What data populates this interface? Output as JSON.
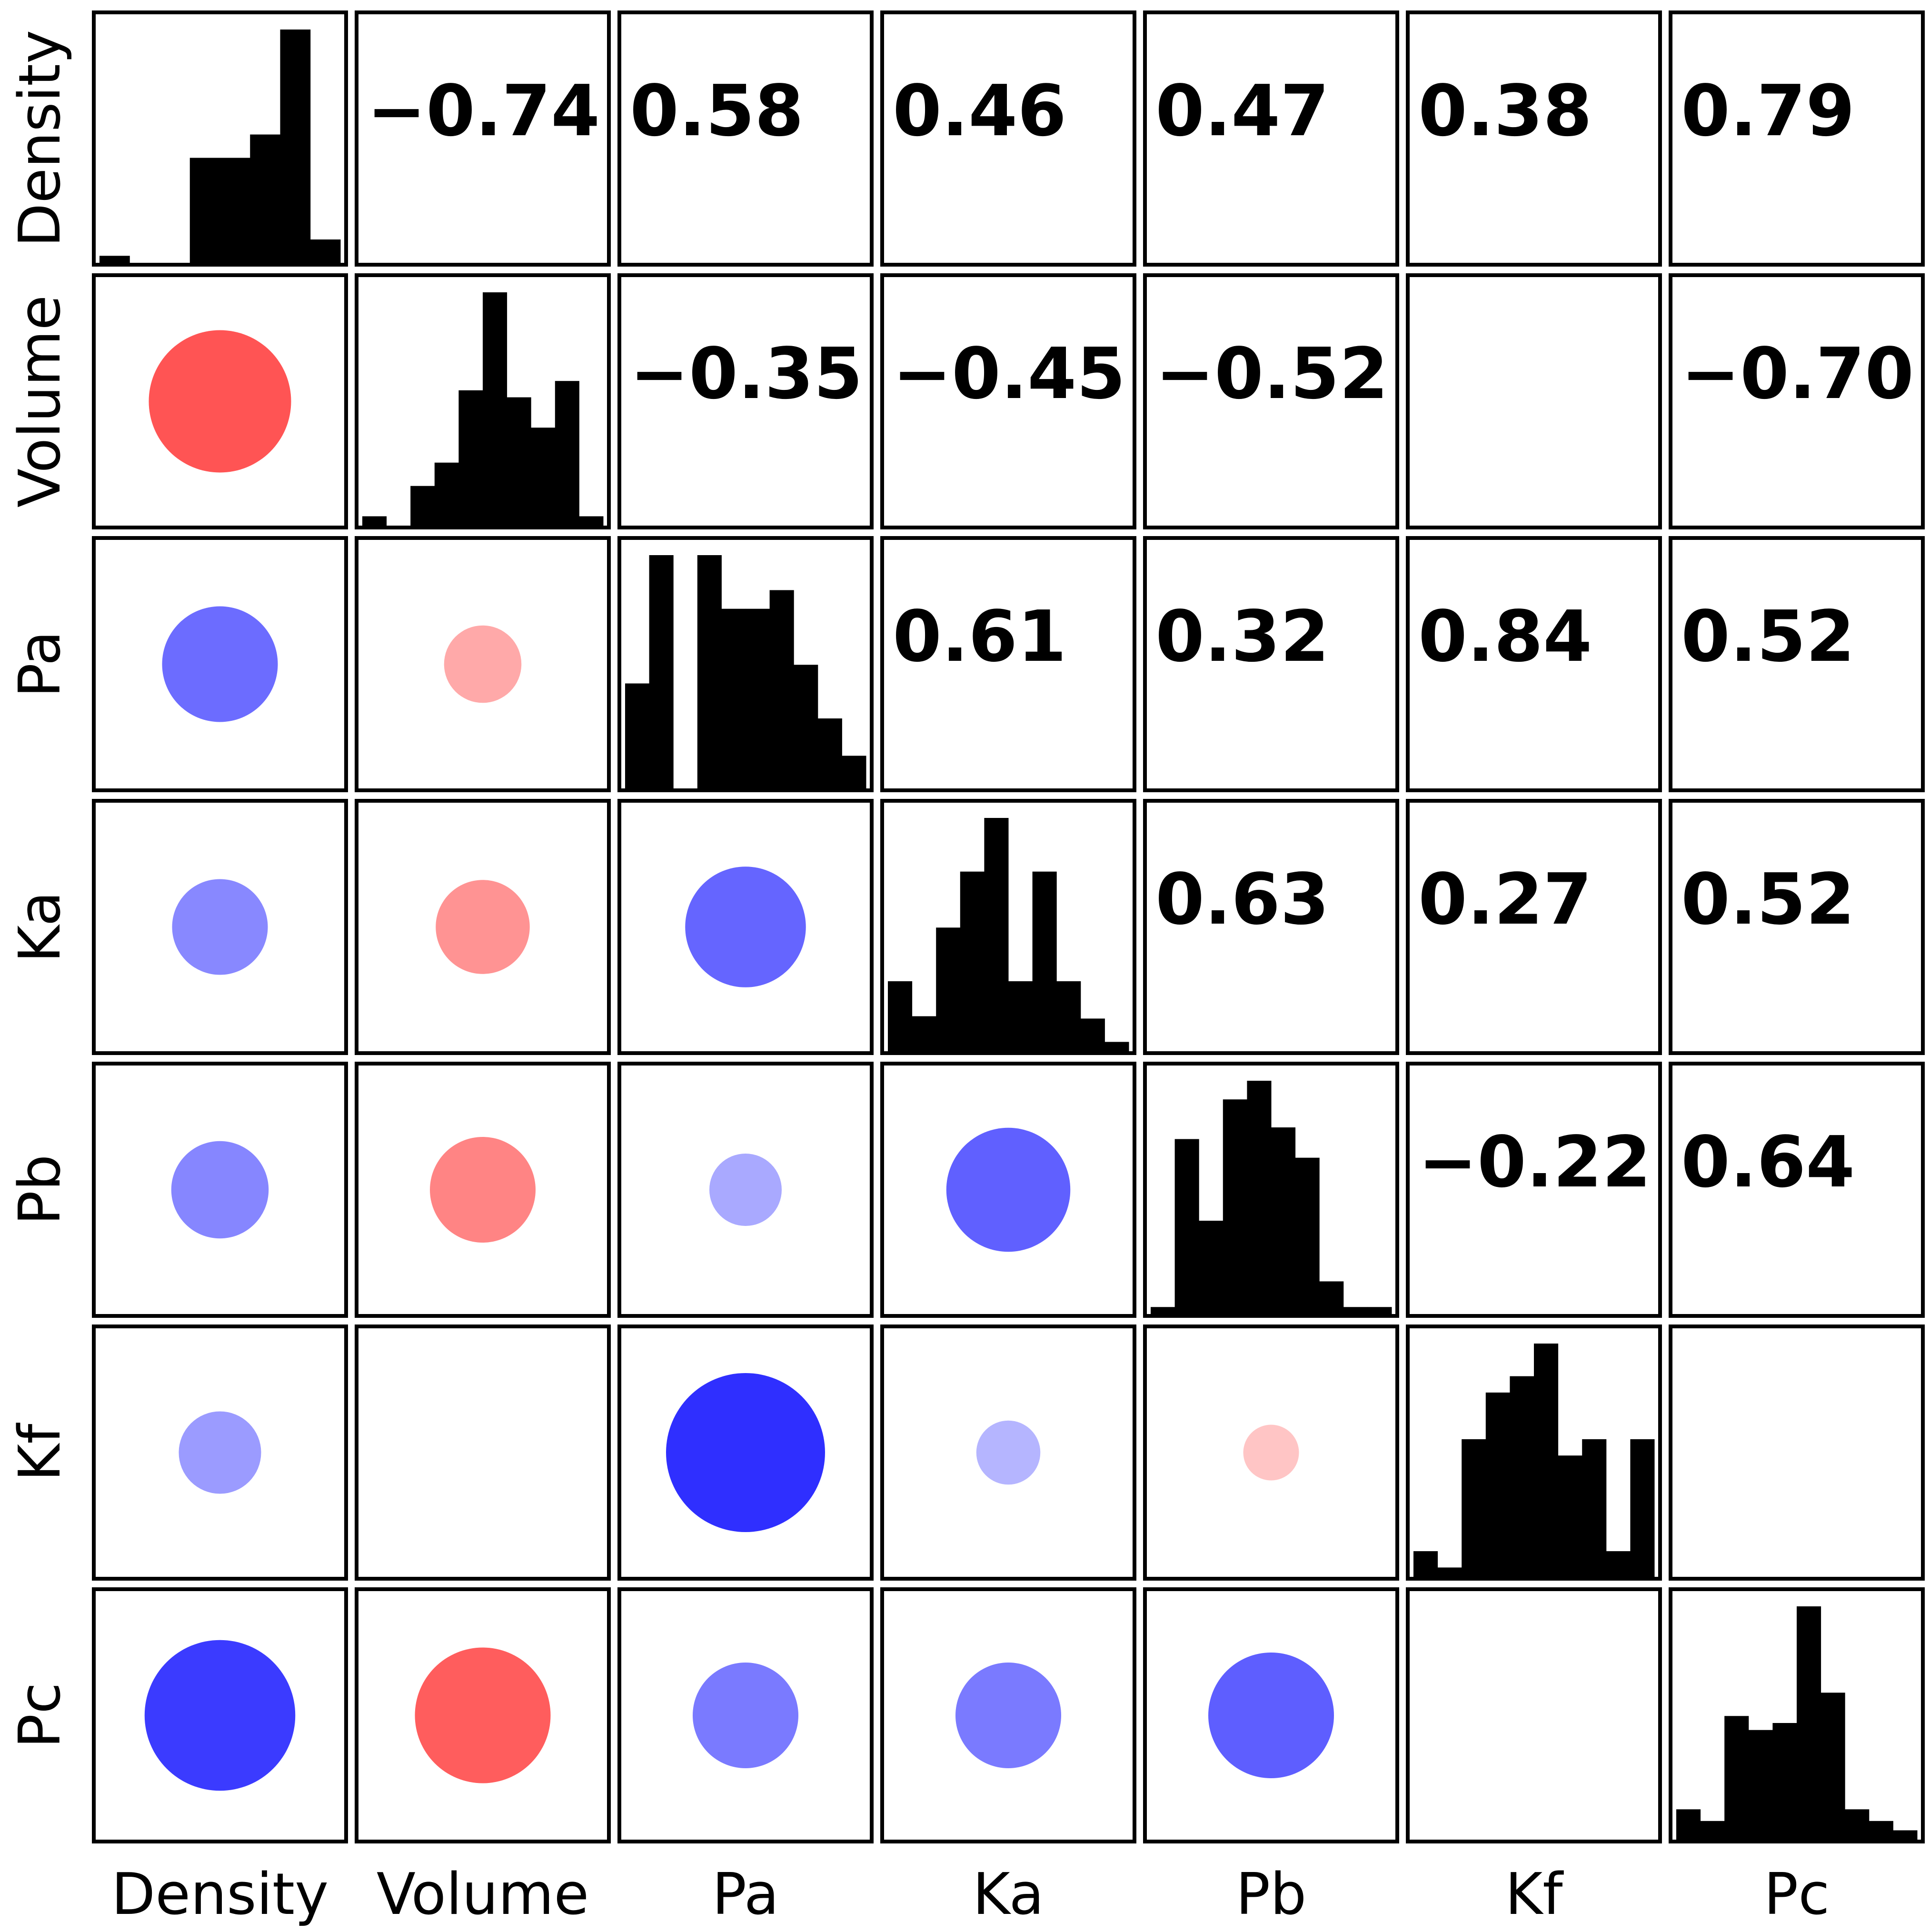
{
  "chart_data": {
    "type": "correlation-matrix",
    "title": "",
    "variables": [
      "Density",
      "Volume",
      "Pa",
      "Ka",
      "Pb",
      "Kf",
      "Pc"
    ],
    "correlations": [
      [
        null,
        -0.74,
        0.58,
        0.46,
        0.47,
        0.38,
        0.79
      ],
      [
        -0.74,
        null,
        -0.35,
        -0.45,
        -0.52,
        null,
        -0.7
      ],
      [
        0.58,
        -0.35,
        null,
        0.61,
        0.32,
        0.84,
        0.52
      ],
      [
        0.46,
        -0.45,
        0.61,
        null,
        0.63,
        0.27,
        0.52
      ],
      [
        0.47,
        -0.52,
        0.32,
        0.63,
        null,
        -0.22,
        0.64
      ],
      [
        0.38,
        null,
        0.84,
        0.27,
        -0.22,
        null,
        null
      ],
      [
        0.79,
        -0.7,
        0.52,
        0.52,
        0.64,
        null,
        null
      ]
    ],
    "upper_triangle_labels": [
      [
        "",
        "−0.74",
        "0.58",
        "0.46",
        "0.47",
        "0.38",
        "0.79"
      ],
      [
        "",
        "",
        "−0.35",
        "−0.45",
        "−0.52",
        "",
        "−0.70"
      ],
      [
        "",
        "",
        "",
        "0.61",
        "0.32",
        "0.84",
        "0.52"
      ],
      [
        "",
        "",
        "",
        "",
        "0.63",
        "0.27",
        "0.52"
      ],
      [
        "",
        "",
        "",
        "",
        "",
        "−0.22",
        "0.64"
      ],
      [
        "",
        "",
        "",
        "",
        "",
        "",
        ""
      ],
      [
        "",
        "",
        "",
        "",
        "",
        "",
        ""
      ]
    ],
    "histograms": [
      [
        0.03,
        0.0,
        0.0,
        0.45,
        0.45,
        0.55,
        1.0,
        0.1
      ],
      [
        0.04,
        0.0,
        0.17,
        0.27,
        0.58,
        1.0,
        0.55,
        0.42,
        0.62,
        0.04
      ],
      [
        0.45,
        1.0,
        0.0,
        1.0,
        0.77,
        0.77,
        0.85,
        0.53,
        0.3,
        0.14
      ],
      [
        0.3,
        0.15,
        0.53,
        0.77,
        1.0,
        0.3,
        0.77,
        0.3,
        0.14,
        0.04
      ],
      [
        0.03,
        0.75,
        0.4,
        0.92,
        1.0,
        0.8,
        0.67,
        0.14,
        0.03,
        0.03
      ],
      [
        0.11,
        0.04,
        0.59,
        0.79,
        0.86,
        1.0,
        0.52,
        0.59,
        0.11,
        0.59
      ],
      [
        0.13,
        0.08,
        0.53,
        0.47,
        0.5,
        1.0,
        0.63,
        0.13,
        0.08,
        0.04
      ]
    ],
    "colors": {
      "positive": "#2020ff",
      "negative": "#ff3030",
      "histogram": "#000000",
      "frame": "#000000"
    }
  }
}
